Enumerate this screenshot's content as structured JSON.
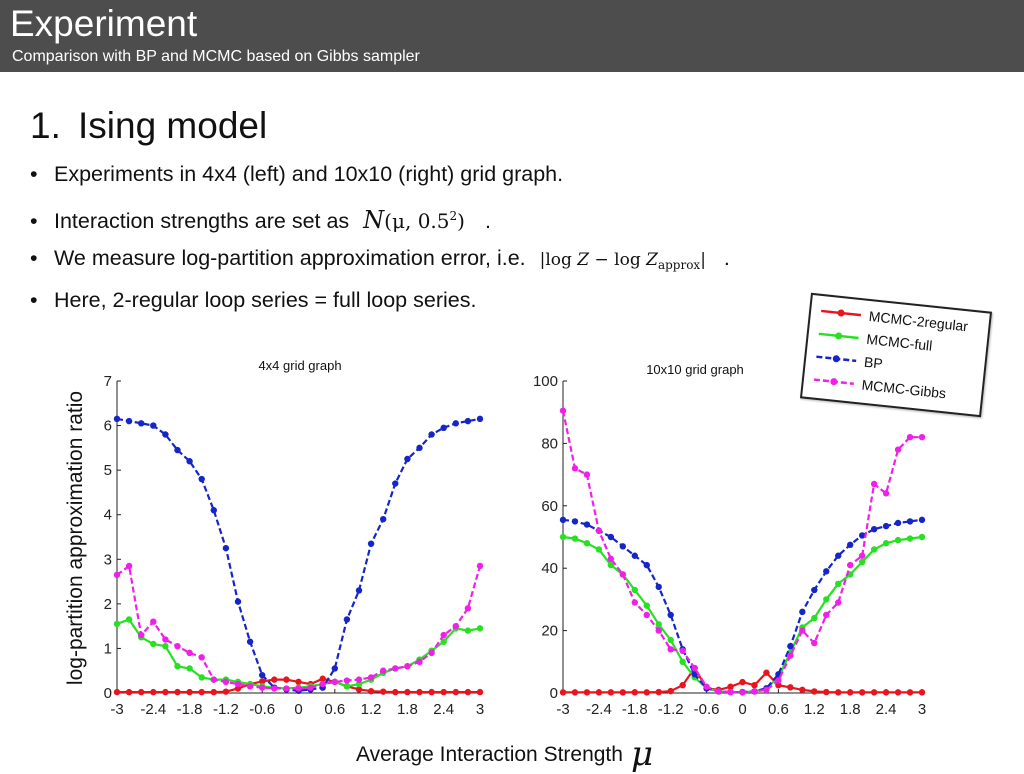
{
  "header": {
    "title": "Experiment",
    "subtitle": "Comparison with BP and MCMC based on Gibbs sampler"
  },
  "section": {
    "number": "1.",
    "title": "Ising model"
  },
  "bullets": {
    "b1": "Experiments in 4x4 (left) and 10x10 (right) grid graph.",
    "b2_text": "Interaction strengths are set as",
    "b2_math_N": "N",
    "b2_math_args": "(μ, 0.5",
    "b2_math_exp": "2",
    "b2_math_close": ")",
    "b2_end": ".",
    "b3_text": "We measure log-partition approximation error, i.e.",
    "b3_math_left": "|log ",
    "b3_math_Z": "Z",
    "b3_math_mid": " − log ",
    "b3_math_Z2": "Z",
    "b3_math_sub": "approx",
    "b3_math_right": "|",
    "b3_end": ".",
    "b4": "Here, 2-regular loop series = full loop series.",
    "bullet_char": "•"
  },
  "labels": {
    "ylabel": "log-partition approximation ratio",
    "xlabel": "Average Interaction Strength",
    "xlabel_symbol": "μ"
  },
  "colors": {
    "mcmc_2regular": "#e8141e",
    "mcmc_full": "#27e022",
    "bp": "#1525c8",
    "mcmc_gibbs": "#f020e8"
  },
  "legend": {
    "items": [
      {
        "name": "MCMC-2regular",
        "color": "#e8141e",
        "dash": false
      },
      {
        "name": "MCMC-full",
        "color": "#27e022",
        "dash": false
      },
      {
        "name": "BP",
        "color": "#1525c8",
        "dash": true
      },
      {
        "name": "MCMC-Gibbs",
        "color": "#f020e8",
        "dash": true
      }
    ]
  },
  "chart_data": [
    {
      "type": "line",
      "title": "4x4 grid graph",
      "xlabel": "",
      "ylabel": "",
      "xlim": [
        -3,
        3
      ],
      "ylim": [
        0,
        7
      ],
      "xticks": [
        "-3",
        "-2.4",
        "-1.8",
        "-1.2",
        "-0.6",
        "0",
        "0.6",
        "1.2",
        "1.8",
        "2.4",
        "3"
      ],
      "yticks": [
        "0",
        "1",
        "2",
        "3",
        "4",
        "5",
        "6",
        "7"
      ],
      "x": [
        -3,
        -2.8,
        -2.6,
        -2.4,
        -2.2,
        -2,
        -1.8,
        -1.6,
        -1.4,
        -1.2,
        -1,
        -0.8,
        -0.6,
        -0.4,
        -0.2,
        0,
        0.2,
        0.4,
        0.6,
        0.8,
        1,
        1.2,
        1.4,
        1.6,
        1.8,
        2,
        2.2,
        2.4,
        2.6,
        2.8,
        3
      ],
      "series": [
        {
          "name": "MCMC-2regular",
          "color": "#e8141e",
          "dash": false,
          "values": [
            0.02,
            0.02,
            0.02,
            0.02,
            0.02,
            0.02,
            0.02,
            0.02,
            0.02,
            0.03,
            0.1,
            0.2,
            0.26,
            0.3,
            0.3,
            0.25,
            0.2,
            0.32,
            0.25,
            0.15,
            0.08,
            0.04,
            0.03,
            0.02,
            0.02,
            0.02,
            0.02,
            0.02,
            0.02,
            0.02,
            0.02
          ]
        },
        {
          "name": "MCMC-full",
          "color": "#27e022",
          "dash": false,
          "values": [
            1.55,
            1.65,
            1.25,
            1.1,
            1.05,
            0.6,
            0.55,
            0.35,
            0.3,
            0.3,
            0.25,
            0.2,
            0.15,
            0.12,
            0.1,
            0.12,
            0.15,
            0.2,
            0.25,
            0.15,
            0.2,
            0.3,
            0.45,
            0.55,
            0.6,
            0.75,
            0.95,
            1.15,
            1.45,
            1.4,
            1.45
          ]
        },
        {
          "name": "BP",
          "color": "#1525c8",
          "dash": true,
          "values": [
            6.15,
            6.1,
            6.05,
            6.0,
            5.8,
            5.45,
            5.2,
            4.8,
            4.1,
            3.25,
            2.05,
            1.15,
            0.4,
            0.12,
            0.08,
            0.05,
            0.08,
            0.12,
            0.55,
            1.65,
            2.3,
            3.35,
            3.9,
            4.7,
            5.25,
            5.5,
            5.8,
            5.95,
            6.05,
            6.1,
            6.15
          ]
        },
        {
          "name": "MCMC-Gibbs",
          "color": "#f020e8",
          "dash": true,
          "values": [
            2.65,
            2.85,
            1.3,
            1.6,
            1.2,
            1.05,
            0.9,
            0.8,
            0.3,
            0.25,
            0.2,
            0.15,
            0.12,
            0.1,
            0.1,
            0.1,
            0.12,
            0.2,
            0.25,
            0.28,
            0.3,
            0.35,
            0.5,
            0.55,
            0.6,
            0.7,
            0.9,
            1.3,
            1.5,
            1.9,
            2.85
          ]
        }
      ]
    },
    {
      "type": "line",
      "title": "10x10 grid graph",
      "xlabel": "",
      "ylabel": "",
      "xlim": [
        -3,
        3
      ],
      "ylim": [
        0,
        100
      ],
      "xticks": [
        "-3",
        "-2.4",
        "-1.8",
        "-1.2",
        "-0.6",
        "0",
        "0.6",
        "1.2",
        "1.8",
        "2.4",
        "3"
      ],
      "yticks": [
        "0",
        "20",
        "40",
        "60",
        "80",
        "100"
      ],
      "x": [
        -3,
        -2.8,
        -2.6,
        -2.4,
        -2.2,
        -2,
        -1.8,
        -1.6,
        -1.4,
        -1.2,
        -1,
        -0.8,
        -0.6,
        -0.4,
        -0.2,
        0,
        0.2,
        0.4,
        0.6,
        0.8,
        1,
        1.2,
        1.4,
        1.6,
        1.8,
        2,
        2.2,
        2.4,
        2.6,
        2.8,
        3
      ],
      "series": [
        {
          "name": "MCMC-2regular",
          "color": "#e8141e",
          "dash": false,
          "values": [
            0.2,
            0.2,
            0.2,
            0.2,
            0.2,
            0.2,
            0.2,
            0.2,
            0.3,
            0.6,
            2.5,
            8,
            1.5,
            1,
            2,
            3.5,
            2.5,
            6.5,
            2.5,
            1.8,
            1,
            0.5,
            0.3,
            0.2,
            0.2,
            0.2,
            0.2,
            0.2,
            0.2,
            0.2,
            0.2
          ]
        },
        {
          "name": "MCMC-full",
          "color": "#27e022",
          "dash": false,
          "values": [
            50,
            49.5,
            48,
            46,
            41,
            38,
            33,
            28,
            22,
            17,
            10,
            5,
            1.5,
            0.5,
            0.3,
            0.3,
            0.5,
            1.5,
            5,
            13,
            21,
            24,
            30,
            35,
            38,
            42,
            46,
            48,
            49,
            49.5,
            50
          ]
        },
        {
          "name": "BP",
          "color": "#1525c8",
          "dash": true,
          "values": [
            55.5,
            55,
            54,
            52,
            50,
            47,
            44,
            41,
            34,
            25,
            14,
            6,
            1.5,
            0.5,
            0.3,
            0.3,
            0.5,
            1.5,
            6,
            15,
            26,
            33,
            39,
            44,
            47.5,
            50.5,
            52.5,
            53.5,
            54.5,
            55,
            55.5
          ]
        },
        {
          "name": "MCMC-Gibbs",
          "color": "#f020e8",
          "dash": true,
          "values": [
            90.5,
            72,
            70,
            52,
            43,
            38,
            29,
            25,
            20,
            14,
            13.5,
            8,
            2,
            0.5,
            0.3,
            0.2,
            0.5,
            1,
            4,
            12,
            20,
            16,
            25,
            29,
            41,
            44,
            67,
            64,
            78,
            82,
            82
          ]
        }
      ]
    }
  ]
}
